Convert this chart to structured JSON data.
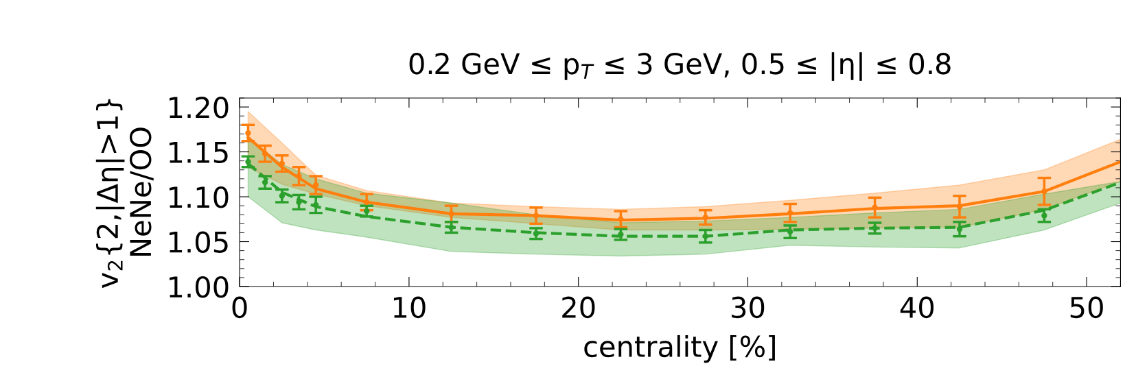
{
  "chart_data": {
    "type": "line",
    "title": "0.2 GeV ≤ p$_{T}$ ≤ 3 GeV, 0.5 ≤ |η| ≤ 0.8",
    "xlabel": "centrality [%]",
    "ylabel": "v$_{2}${2,|Δη|>1}\nNeNe/OO",
    "x": [
      0.5,
      2.5,
      4.5,
      7.5,
      12.5,
      17.5,
      22.5,
      27.5,
      32.5,
      37.5,
      42.5,
      47.5,
      52
    ],
    "series": [
      {
        "color": "#ff7f0e",
        "line_style": "solid",
        "values": [
          1.166,
          1.133,
          1.109,
          1.094,
          1.081,
          1.079,
          1.074,
          1.076,
          1.081,
          1.087,
          1.09,
          1.106,
          1.139
        ],
        "lower": [
          1.133,
          1.114,
          1.103,
          1.09,
          1.077,
          1.07,
          1.063,
          1.063,
          1.064,
          1.065,
          1.066,
          1.086,
          1.117
        ],
        "upper": [
          1.195,
          1.16,
          1.124,
          1.107,
          1.093,
          1.089,
          1.086,
          1.089,
          1.096,
          1.104,
          1.113,
          1.13,
          1.164
        ]
      },
      {
        "color": "#2ca02c",
        "line_style": "dashed",
        "values": [
          1.137,
          1.105,
          1.089,
          1.078,
          1.066,
          1.06,
          1.056,
          1.056,
          1.063,
          1.065,
          1.066,
          1.085,
          1.116
        ],
        "lower": [
          1.1,
          1.071,
          1.063,
          1.055,
          1.039,
          1.036,
          1.034,
          1.036,
          1.046,
          1.044,
          1.043,
          1.063,
          1.093
        ],
        "upper": [
          1.166,
          1.136,
          1.12,
          1.104,
          1.093,
          1.08,
          1.071,
          1.073,
          1.077,
          1.082,
          1.086,
          1.103,
          1.117
        ]
      },
      {
        "type": "scatter",
        "color": "#ff7f0e",
        "marker": "circle",
        "x": [
          0.5,
          1.5,
          2.5,
          3.5,
          4.5,
          7.5,
          12.5,
          17.5,
          22.5,
          27.5,
          32.5,
          37.5,
          42.5,
          47.5
        ],
        "values": [
          1.171,
          1.148,
          1.137,
          1.123,
          1.113,
          1.094,
          1.081,
          1.079,
          1.075,
          1.077,
          1.082,
          1.088,
          1.089,
          1.106
        ],
        "errors": [
          0.009,
          0.009,
          0.009,
          0.01,
          0.01,
          0.009,
          0.009,
          0.009,
          0.009,
          0.008,
          0.01,
          0.011,
          0.012,
          0.015
        ]
      },
      {
        "type": "scatter",
        "color": "#2ca02c",
        "marker": "circle",
        "x": [
          0.5,
          1.5,
          2.5,
          3.5,
          4.5,
          7.5,
          12.5,
          17.5,
          22.5,
          27.5,
          32.5,
          37.5,
          42.5,
          47.5
        ],
        "values": [
          1.139,
          1.116,
          1.101,
          1.094,
          1.091,
          1.084,
          1.066,
          1.059,
          1.058,
          1.056,
          1.061,
          1.065,
          1.064,
          1.079
        ],
        "errors": [
          0.006,
          0.007,
          0.007,
          0.008,
          0.009,
          0.006,
          0.006,
          0.006,
          0.006,
          0.007,
          0.007,
          0.006,
          0.008,
          0.007
        ]
      }
    ],
    "xlim": [
      0,
      52
    ],
    "xticks": [
      0,
      10,
      20,
      30,
      40,
      50
    ],
    "ylim": [
      1.0,
      1.21
    ],
    "yticks": [
      {
        "value": 1.0,
        "label": "1.00"
      },
      {
        "value": 1.05,
        "label": "1.05"
      },
      {
        "value": 1.1,
        "label": "1.10"
      },
      {
        "value": 1.15,
        "label": "1.15"
      },
      {
        "value": 1.2,
        "label": "1.20"
      }
    ]
  }
}
